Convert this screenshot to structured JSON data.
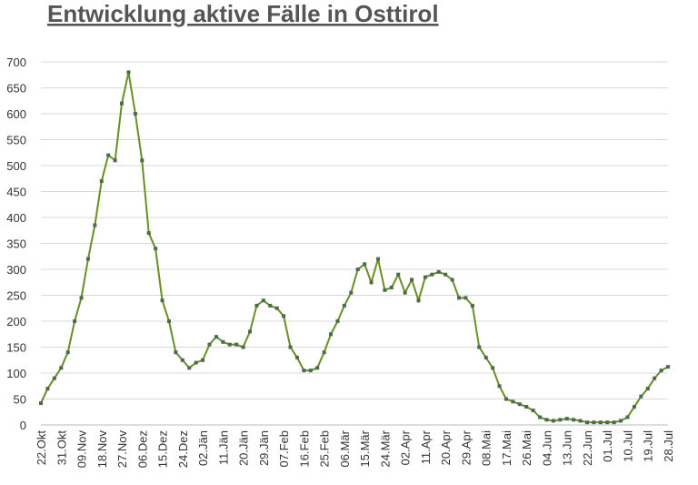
{
  "chart_data": {
    "type": "line",
    "title": "Entwicklung aktive Fälle in Osttirol",
    "categories": [
      "22.Okt",
      null,
      null,
      "31.Okt",
      null,
      null,
      "09.Nov",
      null,
      null,
      "18.Nov",
      null,
      null,
      "27.Nov",
      null,
      null,
      "06.Dez",
      null,
      null,
      "15.Dez",
      null,
      null,
      "24.Dez",
      null,
      null,
      "02.Jän",
      null,
      null,
      "11.Jän",
      null,
      null,
      "20.Jän",
      null,
      null,
      "29.Jän",
      null,
      null,
      "07.Feb",
      null,
      null,
      "16.Feb",
      null,
      null,
      "25.Feb",
      null,
      null,
      "06.Mär",
      null,
      null,
      "15.Mär",
      null,
      null,
      "24.Mär",
      null,
      null,
      "02.Apr",
      null,
      null,
      "11.Apr",
      null,
      null,
      "20.Apr",
      null,
      null,
      "29.Apr",
      null,
      null,
      "08.Mai",
      null,
      null,
      "17.Mai",
      null,
      null,
      "26.Mai",
      null,
      null,
      "04.Jun",
      null,
      null,
      "13.Jun",
      null,
      null,
      "22.Jun",
      null,
      null,
      "01.Jul",
      null,
      null,
      "10.Jul",
      null,
      null,
      "19.Jul",
      null,
      null,
      "28.Jul"
    ],
    "series": [
      {
        "color": "#6b8e23",
        "marker_color": "#4a6b4f",
        "values": [
          42,
          70,
          90,
          110,
          140,
          200,
          245,
          320,
          385,
          470,
          520,
          510,
          620,
          680,
          600,
          510,
          370,
          340,
          240,
          200,
          140,
          125,
          110,
          120,
          125,
          155,
          170,
          160,
          155,
          155,
          150,
          180,
          230,
          240,
          230,
          225,
          210,
          150,
          130,
          105,
          105,
          110,
          140,
          175,
          200,
          230,
          255,
          300,
          310,
          275,
          320,
          260,
          265,
          290,
          255,
          280,
          240,
          285,
          290,
          295,
          290,
          280,
          245,
          245,
          230,
          150,
          130,
          110,
          75,
          50,
          45,
          40,
          35,
          28,
          15,
          10,
          8,
          10,
          12,
          10,
          8,
          5,
          5,
          5,
          5,
          5,
          8,
          15,
          35,
          55,
          70,
          90,
          105,
          112
        ]
      }
    ],
    "ylim": [
      0,
      700
    ],
    "yticks": [
      0,
      50,
      100,
      150,
      200,
      250,
      300,
      350,
      400,
      450,
      500,
      550,
      600,
      650,
      700
    ],
    "grid": true
  }
}
